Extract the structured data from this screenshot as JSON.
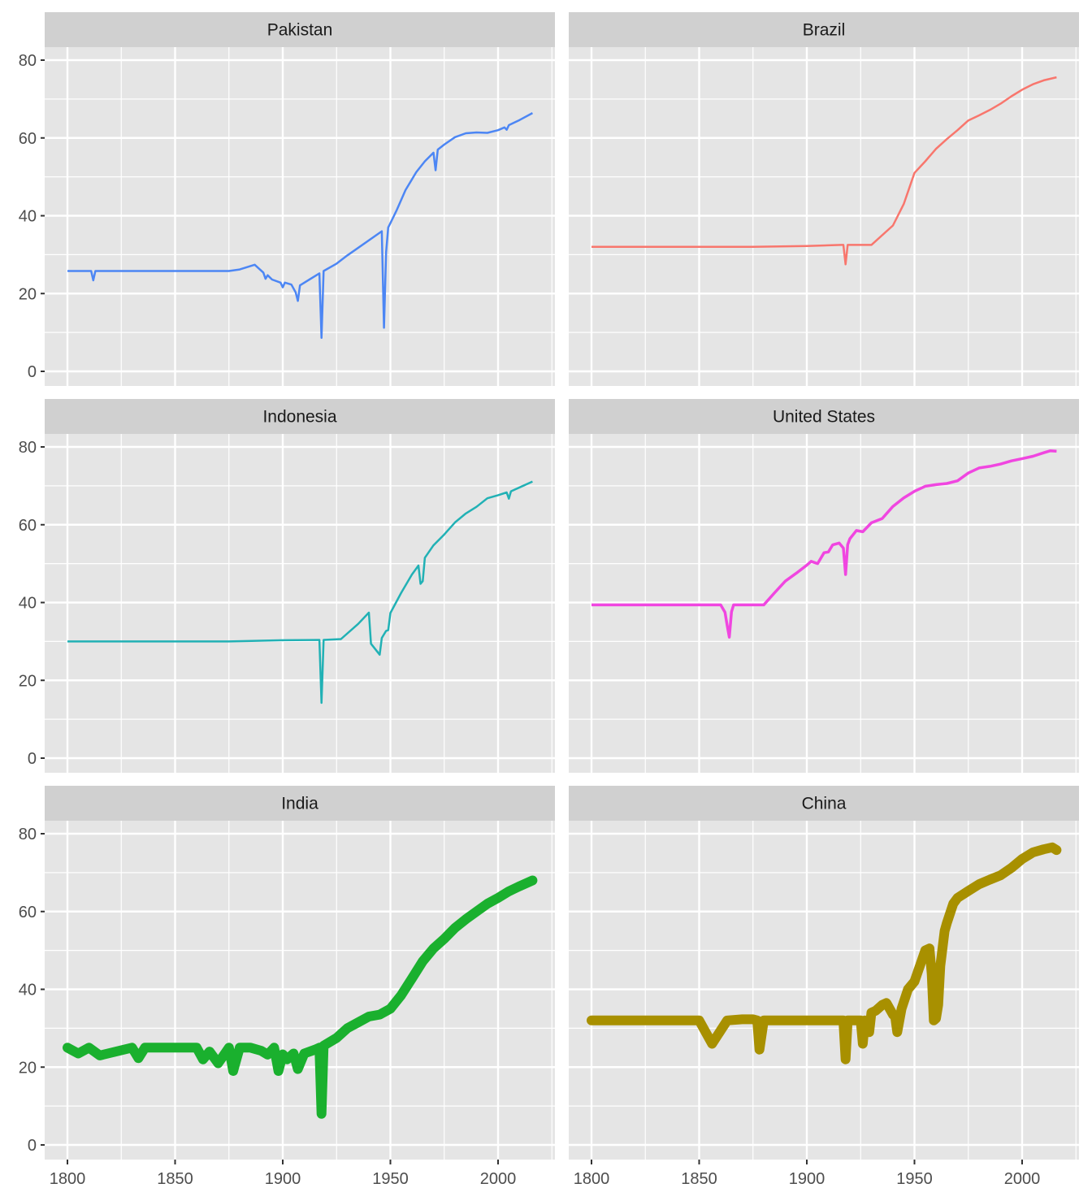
{
  "chart_data": {
    "type": "line",
    "layout": "facet_wrap 3 rows x 2 cols, shared axes",
    "xlabel": "",
    "ylabel": "",
    "xlim": [
      1792,
      2024
    ],
    "ylim": [
      -3.5,
      83
    ],
    "x_ticks": [
      1800,
      1850,
      1900,
      1950,
      2000
    ],
    "y_ticks": [
      0,
      20,
      40,
      60,
      80
    ],
    "grid": true,
    "legend": "none",
    "panels": [
      {
        "title": "Pakistan",
        "color": "#4C86F4",
        "linewidth": 2.5,
        "x": [
          1800,
          1811,
          1812,
          1813,
          1875,
          1880,
          1887,
          1891,
          1892,
          1893,
          1895,
          1899,
          1900,
          1901,
          1904,
          1906,
          1907,
          1908,
          1917,
          1918,
          1919,
          1925,
          1930,
          1946,
          1947,
          1948,
          1949,
          1950,
          1953,
          1957,
          1962,
          1966,
          1970,
          1971,
          1972,
          1975,
          1980,
          1985,
          1990,
          1995,
          2000,
          2003,
          2004,
          2005,
          2010,
          2016
        ],
        "y": [
          25.8,
          25.8,
          23.4,
          25.8,
          25.8,
          26.2,
          27.4,
          25.4,
          23.8,
          24.7,
          23.6,
          22.8,
          21.6,
          22.8,
          22.3,
          20.3,
          18.1,
          22.1,
          25.2,
          8.6,
          25.8,
          27.7,
          29.8,
          36.0,
          11.2,
          30.6,
          37.0,
          38.1,
          41.5,
          46.6,
          51.2,
          54.0,
          56.2,
          51.7,
          57.0,
          58.3,
          60.2,
          61.2,
          61.4,
          61.3,
          62.0,
          62.7,
          62.1,
          63.3,
          64.6,
          66.4
        ]
      },
      {
        "title": "Brazil",
        "color": "#F8766D",
        "linewidth": 2.5,
        "x": [
          1800,
          1850,
          1875,
          1900,
          1916,
          1917,
          1918,
          1919,
          1930,
          1940,
          1945,
          1950,
          1955,
          1960,
          1965,
          1970,
          1975,
          1980,
          1985,
          1990,
          1995,
          2000,
          2005,
          2010,
          2016
        ],
        "y": [
          32.0,
          32.0,
          32.0,
          32.2,
          32.5,
          32.5,
          27.5,
          32.5,
          32.5,
          37.5,
          43.0,
          51.0,
          54.0,
          57.2,
          59.7,
          62.0,
          64.5,
          65.8,
          67.2,
          68.8,
          70.7,
          72.4,
          73.8,
          74.8,
          75.6
        ]
      },
      {
        "title": "Indonesia",
        "color": "#21B1B5",
        "linewidth": 2.5,
        "x": [
          1800,
          1850,
          1875,
          1900,
          1917,
          1918,
          1919,
          1927,
          1935,
          1940,
          1941,
          1945,
          1946,
          1948,
          1949,
          1950,
          1955,
          1960,
          1963,
          1964,
          1965,
          1966,
          1970,
          1975,
          1980,
          1985,
          1990,
          1995,
          2000,
          2004,
          2005,
          2006,
          2010,
          2016
        ],
        "y": [
          30.0,
          30.0,
          30.0,
          30.3,
          30.4,
          14.2,
          30.4,
          30.6,
          34.5,
          37.4,
          29.4,
          26.6,
          30.9,
          32.7,
          32.9,
          37.3,
          42.5,
          47.2,
          49.5,
          44.8,
          45.5,
          51.5,
          54.7,
          57.5,
          60.6,
          62.9,
          64.6,
          66.8,
          67.6,
          68.3,
          66.7,
          68.6,
          69.6,
          71.1
        ]
      },
      {
        "title": "United States",
        "color": "#F046E0",
        "linewidth": 3.5,
        "x": [
          1800,
          1850,
          1860,
          1862,
          1863,
          1864,
          1865,
          1866,
          1870,
          1880,
          1885,
          1890,
          1895,
          1900,
          1902,
          1905,
          1908,
          1910,
          1912,
          1915,
          1917,
          1918,
          1919,
          1920,
          1923,
          1926,
          1930,
          1935,
          1940,
          1945,
          1950,
          1955,
          1960,
          1965,
          1970,
          1975,
          1980,
          1985,
          1990,
          1995,
          2000,
          2005,
          2010,
          2013,
          2016
        ],
        "y": [
          39.4,
          39.4,
          39.4,
          37.5,
          34.1,
          31.1,
          37.6,
          39.4,
          39.4,
          39.4,
          42.5,
          45.5,
          47.5,
          49.6,
          50.6,
          50.0,
          52.8,
          53.0,
          54.8,
          55.3,
          54.0,
          47.2,
          54.9,
          56.4,
          58.5,
          58.2,
          60.5,
          61.6,
          64.7,
          66.9,
          68.6,
          69.9,
          70.3,
          70.6,
          71.3,
          73.3,
          74.6,
          75.0,
          75.6,
          76.4,
          77.0,
          77.6,
          78.5,
          79.0,
          78.9
        ]
      },
      {
        "title": "India",
        "color": "#1AB02E",
        "linewidth": 12,
        "x": [
          1800,
          1805,
          1810,
          1815,
          1830,
          1833,
          1836,
          1845,
          1860,
          1863,
          1866,
          1870,
          1875,
          1877,
          1880,
          1885,
          1890,
          1893,
          1896,
          1898,
          1900,
          1902,
          1905,
          1907,
          1910,
          1915,
          1917,
          1918,
          1919,
          1925,
          1930,
          1935,
          1940,
          1945,
          1950,
          1955,
          1960,
          1965,
          1970,
          1975,
          1980,
          1985,
          1990,
          1995,
          2000,
          2005,
          2010,
          2016
        ],
        "y": [
          25.0,
          23.5,
          25.0,
          23.0,
          25.0,
          22.3,
          25.0,
          25.0,
          25.0,
          22.0,
          24.0,
          21.0,
          25.0,
          19.0,
          25.0,
          25.0,
          24.2,
          23.2,
          25.0,
          19.0,
          23.3,
          22.0,
          23.5,
          19.5,
          23.5,
          24.5,
          25.0,
          8.0,
          25.5,
          27.5,
          30.0,
          31.5,
          33.0,
          33.5,
          35.0,
          38.5,
          42.8,
          47.2,
          50.5,
          53.0,
          55.8,
          58.0,
          60.0,
          62.0,
          63.5,
          65.2,
          66.5,
          68.0
        ]
      },
      {
        "title": "China",
        "color": "#A89000",
        "linewidth": 12,
        "x": [
          1800,
          1850,
          1856,
          1863,
          1870,
          1875,
          1877,
          1878,
          1880,
          1885,
          1900,
          1915,
          1917,
          1918,
          1919,
          1925,
          1926,
          1927,
          1929,
          1930,
          1932,
          1935,
          1937,
          1940,
          1941,
          1942,
          1944,
          1947,
          1950,
          1955,
          1957,
          1958,
          1959,
          1960,
          1961,
          1962,
          1964,
          1965,
          1968,
          1970,
          1975,
          1980,
          1985,
          1990,
          1995,
          2000,
          2005,
          2010,
          2014,
          2016
        ],
        "y": [
          32.0,
          32.0,
          26.0,
          32.0,
          32.3,
          32.3,
          32.0,
          24.5,
          32.0,
          32.0,
          32.0,
          32.0,
          32.0,
          22.0,
          32.0,
          32.0,
          26.0,
          32.0,
          29.0,
          34.0,
          34.5,
          36.0,
          36.5,
          33.5,
          33.0,
          29.0,
          35.0,
          40.0,
          42.0,
          50.0,
          50.5,
          44.0,
          32.0,
          32.5,
          36.0,
          46.0,
          55.0,
          57.0,
          62.0,
          63.5,
          65.3,
          67.0,
          68.2,
          69.3,
          71.2,
          73.5,
          75.2,
          76.0,
          76.5,
          75.8
        ]
      }
    ]
  },
  "strips": {
    "p0": "Pakistan",
    "p1": "Brazil",
    "p2": "Indonesia",
    "p3": "United States",
    "p4": "India",
    "p5": "China"
  },
  "axes": {
    "x_labels": [
      "1800",
      "1850",
      "1900",
      "1950",
      "2000"
    ],
    "y_labels": [
      "0",
      "20",
      "40",
      "60",
      "80"
    ]
  },
  "colors": {
    "panel_bg": "#E5E5E5",
    "strip_bg": "#D0D0D0",
    "grid": "#FFFFFF",
    "tick_text": "#4D4D4D",
    "strip_text": "#1A1A1A"
  }
}
